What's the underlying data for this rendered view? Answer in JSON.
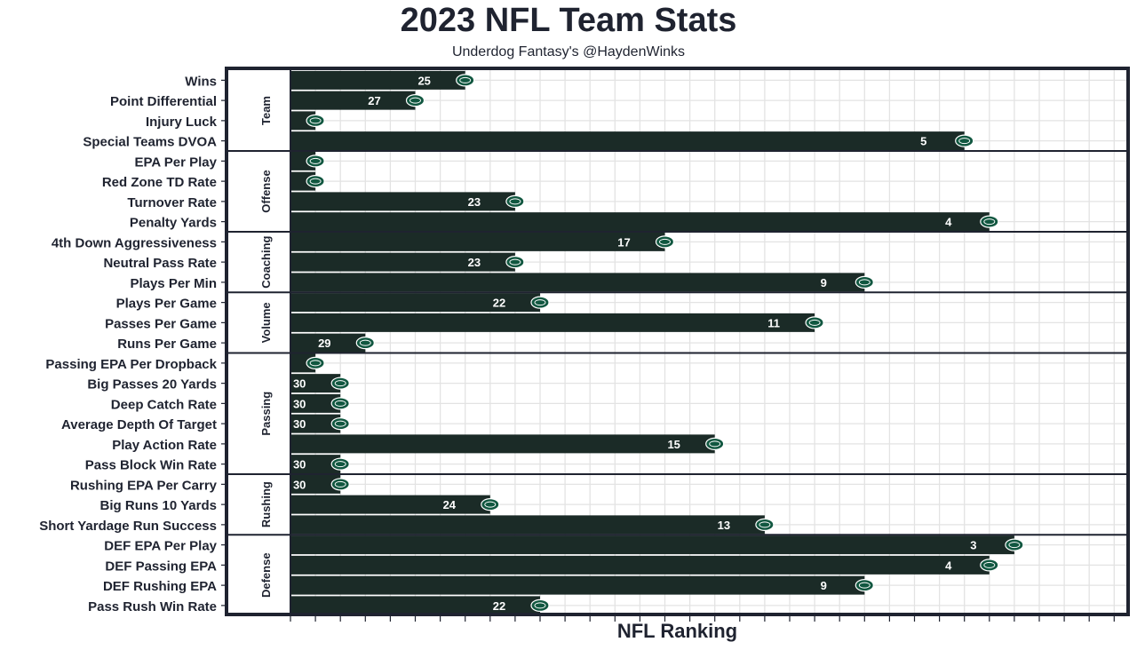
{
  "title": "2023 NFL Team Stats",
  "subtitle": "Underdog Fantasy's @HaydenWinks",
  "colors": {
    "bar": "#1b2b27",
    "frame": "#1f2330",
    "grid": "#e3e3e3",
    "logo_fill": "#115740",
    "text": "#1f2330"
  },
  "icon": "jets-logo-icon",
  "chart_data": {
    "type": "bar",
    "orientation": "horizontal",
    "title": "2023 NFL Team Stats",
    "subtitle": "Underdog Fantasy's @HaydenWinks",
    "xlabel": "NFL Ranking",
    "ylabel": "",
    "xlim": [
      32,
      0
    ],
    "x_reversed": true,
    "grid": true,
    "groups": [
      {
        "name": "Team",
        "items": [
          {
            "label": "Wins",
            "value": 25
          },
          {
            "label": "Point Differential",
            "value": 27
          },
          {
            "label": "Injury Luck",
            "value": 31
          },
          {
            "label": "Special Teams DVOA",
            "value": 5
          }
        ]
      },
      {
        "name": "Offense",
        "items": [
          {
            "label": "EPA Per Play",
            "value": 31
          },
          {
            "label": "Red Zone TD Rate",
            "value": 31
          },
          {
            "label": "Turnover Rate",
            "value": 23
          },
          {
            "label": "Penalty Yards",
            "value": 4
          }
        ]
      },
      {
        "name": "Coaching",
        "items": [
          {
            "label": "4th Down Aggressiveness",
            "value": 17
          },
          {
            "label": "Neutral Pass Rate",
            "value": 23
          },
          {
            "label": "Plays Per Min",
            "value": 9
          }
        ]
      },
      {
        "name": "Volume",
        "items": [
          {
            "label": "Plays Per Game",
            "value": 22
          },
          {
            "label": "Passes Per Game",
            "value": 11
          },
          {
            "label": "Runs Per Game",
            "value": 29
          }
        ]
      },
      {
        "name": "Passing",
        "items": [
          {
            "label": "Passing EPA Per Dropback",
            "value": 31
          },
          {
            "label": "Big Passes 20 Yards",
            "value": 30
          },
          {
            "label": "Deep Catch Rate",
            "value": 30
          },
          {
            "label": "Average Depth Of Target",
            "value": 30
          },
          {
            "label": "Play Action Rate",
            "value": 15
          },
          {
            "label": "Pass Block Win Rate",
            "value": 30
          }
        ]
      },
      {
        "name": "Rushing",
        "items": [
          {
            "label": "Rushing EPA Per Carry",
            "value": 30
          },
          {
            "label": "Big Runs 10 Yards",
            "value": 24
          },
          {
            "label": "Short Yardage Run Success",
            "value": 13
          }
        ]
      },
      {
        "name": "Defense",
        "items": [
          {
            "label": "DEF EPA Per Play",
            "value": 3
          },
          {
            "label": "DEF Passing EPA",
            "value": 4
          },
          {
            "label": "DEF Rushing EPA",
            "value": 9
          },
          {
            "label": "Pass Rush Win Rate",
            "value": 22
          }
        ]
      }
    ]
  }
}
